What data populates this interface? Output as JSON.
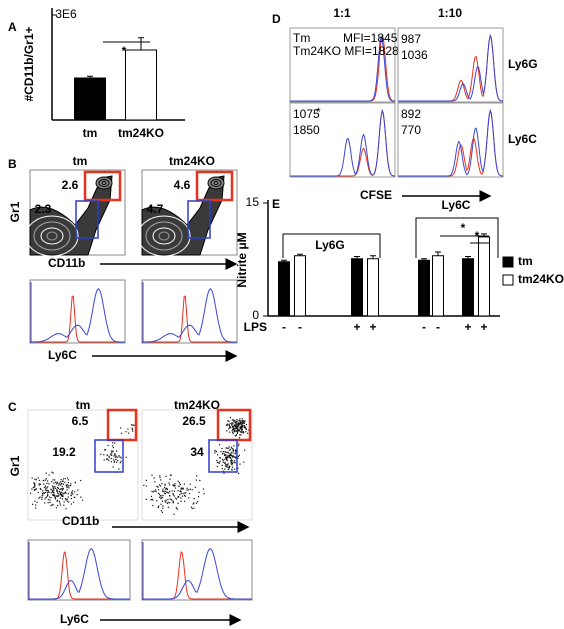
{
  "chart_data": [
    {
      "type": "bar",
      "label": "A",
      "y_label": "#CD11b/Gr1+",
      "categories": [
        "tm",
        "tm24KO"
      ],
      "values": [
        1200000,
        2000000
      ],
      "errors": [
        50000,
        350000
      ],
      "colors": [
        "#000000",
        "#ffffff"
      ],
      "ylim": [
        0,
        3000000
      ],
      "yticks": [
        {
          "value": 3000000,
          "label": "3E6"
        }
      ],
      "annotation": "*"
    },
    {
      "type": "bar",
      "label": "E",
      "y_label": "Nitrite μM",
      "x_label": "LPS",
      "categories": [
        "-",
        "+",
        "-",
        "+"
      ],
      "groups": [
        "Ly6G",
        "Ly6C"
      ],
      "series": [
        {
          "name": "tm",
          "color": "#000000",
          "values": [
            7.2,
            7.6,
            7.4,
            7.6
          ],
          "errors": [
            0.2,
            0.3,
            0.2,
            0.3
          ]
        },
        {
          "name": "tm24KO",
          "color": "#ffffff",
          "values": [
            8.0,
            7.6,
            8.0,
            10.5
          ],
          "errors": [
            0.2,
            0.4,
            0.5,
            0.4
          ]
        }
      ],
      "ylim": [
        0,
        15
      ],
      "yticks": [
        0,
        15
      ],
      "annotations": [
        "*",
        "*"
      ],
      "legend": "right"
    }
  ],
  "flow": {
    "B": {
      "label": "B",
      "samples": [
        "tm",
        "tm24KO"
      ],
      "y_axis": "Gr1",
      "x_axis": "CD11b",
      "histogram_axis": "Ly6C",
      "gates": [
        [
          2.6,
          2.3
        ],
        [
          4.6,
          4.7
        ]
      ]
    },
    "C": {
      "label": "C",
      "samples": [
        "tm",
        "tm24KO"
      ],
      "y_axis": "Gr1",
      "x_axis": "CD11b",
      "histogram_axis": "Ly6C",
      "gates": [
        [
          6.5,
          19.2
        ],
        [
          26.5,
          34
        ]
      ]
    },
    "D": {
      "label": "D",
      "columns": [
        "1:1",
        "1:10"
      ],
      "rows": [
        "Ly6G",
        "Ly6C"
      ],
      "x_axis": "CFSE",
      "cells": [
        [
          [
            "Tm",
            "MFI=1845",
            "Tm24KO MFI=1828"
          ],
          [
            "987",
            "1036"
          ]
        ],
        [
          [
            "1075",
            "1850"
          ],
          [
            "892",
            "770"
          ]
        ]
      ],
      "asterisk": "*"
    }
  }
}
